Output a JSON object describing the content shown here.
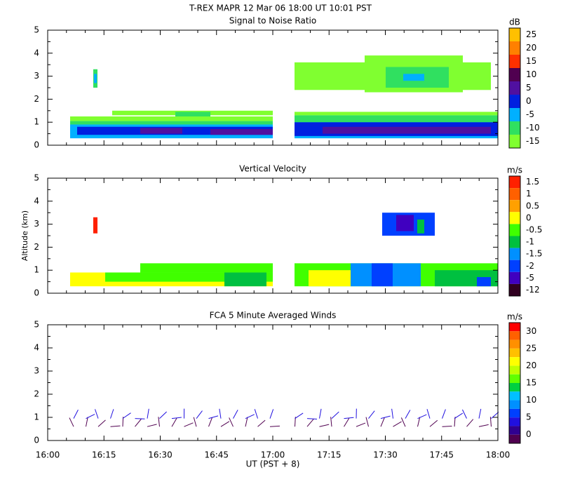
{
  "title": "T-REX   MAPR 12 Mar 06   18:00 UT   10:01   PST",
  "xlabel": "UT  (PST + 8)",
  "x_labels": [
    "16:00",
    "16:15",
    "16:30",
    "16:45",
    "17:00",
    "17:15",
    "17:30",
    "17:45",
    "18:00"
  ],
  "chart_data": [
    {
      "type": "heatmap",
      "title": "Signal to Noise Ratio",
      "ylim": [
        0,
        5
      ],
      "yticks": [
        0,
        1,
        2,
        3,
        4,
        5
      ],
      "colorbar": {
        "label": "dB",
        "ticks": [
          25,
          20,
          15,
          10,
          5,
          0,
          -5,
          -10,
          -15
        ],
        "colors": [
          "#ffc000",
          "#ff8000",
          "#ff3000",
          "#500050",
          "#5010a0",
          "#0020e0",
          "#00b0ff",
          "#30e060",
          "#80ff30"
        ]
      }
    },
    {
      "type": "heatmap",
      "title": "Vertical Velocity",
      "ylabel": "Altitude (km)",
      "ylim": [
        0,
        5
      ],
      "yticks": [
        0,
        1,
        2,
        3,
        4,
        5
      ],
      "colorbar": {
        "label": "m/s",
        "ticks": [
          1.5,
          1,
          0.5,
          0,
          -0.5,
          -1,
          -1.5,
          -2,
          -5,
          -12
        ],
        "colors": [
          "#ff2000",
          "#ff6000",
          "#ffa000",
          "#ffff00",
          "#40ff00",
          "#00c040",
          "#0090ff",
          "#0040ff",
          "#4000c0",
          "#300020"
        ]
      }
    },
    {
      "type": "winds",
      "title": "FCA 5 Minute Averaged Winds",
      "ylim": [
        0,
        5
      ],
      "yticks": [
        0,
        1,
        2,
        3,
        4,
        5
      ],
      "colorbar": {
        "label": "m/s",
        "ticks": [
          30,
          25,
          20,
          15,
          10,
          5,
          0
        ],
        "colors": [
          "#ff0000",
          "#ff6000",
          "#ff9000",
          "#ffc000",
          "#ffff00",
          "#c0ff00",
          "#60ff00",
          "#00d040",
          "#00c0ff",
          "#0090ff",
          "#0040ff",
          "#2010e0",
          "#300090",
          "#500050"
        ]
      }
    }
  ]
}
